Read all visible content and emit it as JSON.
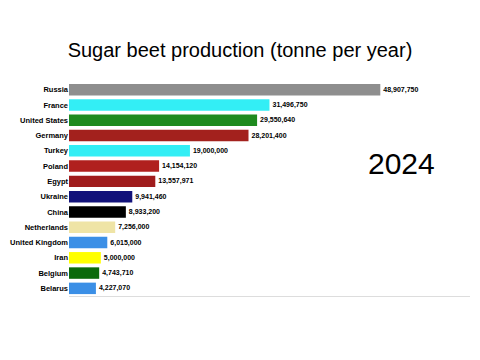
{
  "chart_data": {
    "type": "bar",
    "title": "Sugar beet production (tonne per year)",
    "orientation": "horizontal",
    "categories": [
      "Russia",
      "France",
      "United States",
      "Germany",
      "Turkey",
      "Poland",
      "Egypt",
      "Ukraine",
      "China",
      "Netherlands",
      "United Kingdom",
      "Iran",
      "Belgium",
      "Belarus"
    ],
    "values": [
      48907750,
      31496750,
      29550640,
      28201400,
      19000000,
      14154120,
      13557971,
      9941460,
      8933200,
      7256000,
      6015000,
      5000000,
      4743710,
      4227070
    ],
    "value_labels": [
      "48,907,750",
      "31,496,750",
      "29,550,640",
      "28,201,400",
      "19,000,000",
      "14,154,120",
      "13,557,971",
      "9,941,460",
      "8,933,200",
      "7,256,000",
      "6,015,000",
      "5,000,000",
      "4,743,710",
      "4,227,070"
    ],
    "colors": [
      "#8e8e8e",
      "#33eef5",
      "#1e8a1e",
      "#a3211d",
      "#33eef5",
      "#b0201e",
      "#a01c1c",
      "#12127a",
      "#000000",
      "#efe4a6",
      "#3b8fe6",
      "#ffff00",
      "#0a6a0a",
      "#3b8fe6"
    ],
    "data_labels": true,
    "xlim": [
      0,
      63000000
    ],
    "xticks": [],
    "tick_labels": "y",
    "grid": false,
    "annotations": [
      "2024"
    ]
  }
}
